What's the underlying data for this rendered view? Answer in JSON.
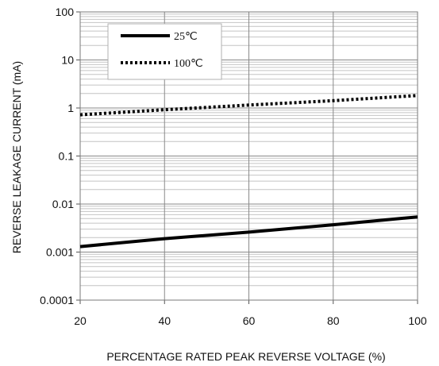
{
  "chart_data": {
    "type": "line",
    "title": "",
    "xlabel": "PERCENTAGE RATED PEAK REVERSE VOLTAGE (%)",
    "ylabel": "REVERSE LEAKAGE CURRENT (mA)",
    "x_ticks": [
      20,
      40,
      60,
      80,
      100
    ],
    "x_tick_labels": [
      "20",
      "40",
      "60",
      "80",
      "100"
    ],
    "xlim": [
      20,
      100
    ],
    "y_scale": "log",
    "ylim": [
      0.0001,
      100
    ],
    "y_tick_labels": [
      "100",
      "10",
      "1",
      "0.1",
      "0.01",
      "0.001",
      "0.0001"
    ],
    "grid": "major and minor",
    "legend_position": "top-left",
    "series": [
      {
        "name": "25℃",
        "style": "solid",
        "color": "#000000",
        "x": [
          20,
          40,
          60,
          80,
          100
        ],
        "y": [
          0.0013,
          0.0019,
          0.0026,
          0.0037,
          0.0054
        ]
      },
      {
        "name": "100℃",
        "style": "dotted",
        "color": "#000000",
        "x": [
          20,
          40,
          60,
          80,
          100
        ],
        "y": [
          0.72,
          0.92,
          1.15,
          1.42,
          1.82
        ]
      }
    ]
  }
}
